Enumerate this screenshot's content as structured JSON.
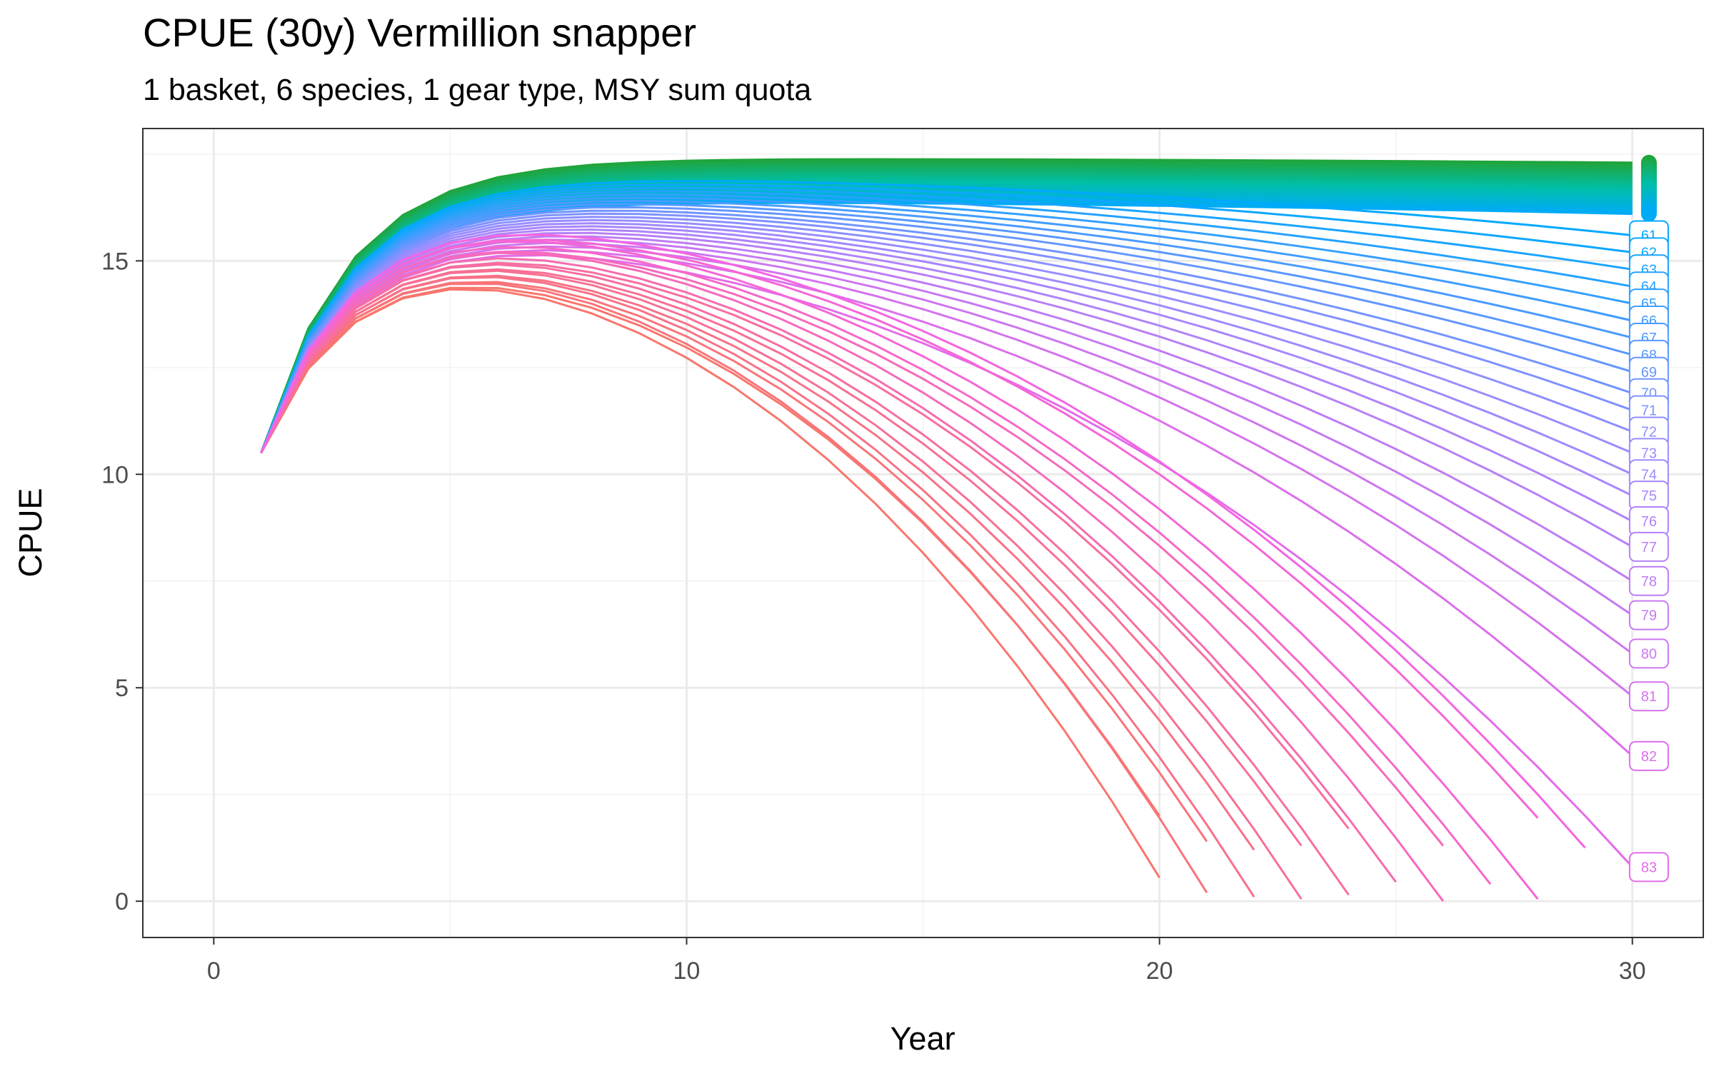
{
  "chart_data": {
    "type": "line",
    "title": "CPUE (30y) Vermillion snapper",
    "subtitle": "1 basket, 6 species, 1 gear type, MSY sum quota",
    "xlabel": "Year",
    "ylabel": "CPUE",
    "xlim": [
      -1.5,
      31.5
    ],
    "ylim": [
      -0.85,
      18.1
    ],
    "xticks": [
      0,
      10,
      20,
      30
    ],
    "yticks": [
      0,
      5,
      10,
      15
    ],
    "x_tick_labels": [
      "0",
      "10",
      "20",
      "30"
    ],
    "y_tick_labels": [
      "0",
      "5",
      "10",
      "15"
    ],
    "grid": true,
    "legend": "none",
    "series_description": "Family of CPUE trajectories, one per scenario; trajectories with lower quota (teal/green) stay near the plateau at ~17.3, higher quota (magenta/red) decline and end early. Scenarios labelled 61-83 at the right end.",
    "plateau": {
      "base": 10.5,
      "max": 17.4,
      "rise_rate": 0.55
    },
    "series": [
      {
        "name": "61",
        "end_value": 15.6
      },
      {
        "name": "62",
        "end_value": 15.2
      },
      {
        "name": "63",
        "end_value": 14.8
      },
      {
        "name": "64",
        "end_value": 14.4
      },
      {
        "name": "65",
        "end_value": 14.0
      },
      {
        "name": "66",
        "end_value": 13.6
      },
      {
        "name": "67",
        "end_value": 13.2
      },
      {
        "name": "68",
        "end_value": 12.8
      },
      {
        "name": "69",
        "end_value": 12.4
      },
      {
        "name": "70",
        "end_value": 11.9
      },
      {
        "name": "71",
        "end_value": 11.5
      },
      {
        "name": "72",
        "end_value": 11.0
      },
      {
        "name": "73",
        "end_value": 10.5
      },
      {
        "name": "74",
        "end_value": 10.0
      },
      {
        "name": "75",
        "end_value": 9.5
      },
      {
        "name": "76",
        "end_value": 8.9
      },
      {
        "name": "77",
        "end_value": 8.3
      },
      {
        "name": "78",
        "end_value": 7.5
      },
      {
        "name": "79",
        "end_value": 6.7
      },
      {
        "name": "80",
        "end_value": 5.8
      },
      {
        "name": "81",
        "end_value": 4.8
      },
      {
        "name": "82",
        "end_value": 3.4
      },
      {
        "name": "83",
        "end_value": 0.8
      }
    ],
    "early_ending_series": [
      {
        "end_year": 20,
        "end_value": 0.55
      },
      {
        "end_year": 20,
        "end_value": 2.0
      },
      {
        "end_year": 21,
        "end_value": 0.2
      },
      {
        "end_year": 21,
        "end_value": 1.4
      },
      {
        "end_year": 22,
        "end_value": 0.1
      },
      {
        "end_year": 22,
        "end_value": 1.2
      },
      {
        "end_year": 23,
        "end_value": 0.05
      },
      {
        "end_year": 23,
        "end_value": 1.3
      },
      {
        "end_year": 24,
        "end_value": 0.15
      },
      {
        "end_year": 24,
        "end_value": 1.7
      },
      {
        "end_year": 25,
        "end_value": 0.45
      },
      {
        "end_year": 26,
        "end_value": 0.0
      },
      {
        "end_year": 26,
        "end_value": 1.3
      },
      {
        "end_year": 27,
        "end_value": 0.4
      },
      {
        "end_year": 28,
        "end_value": 0.05
      },
      {
        "end_year": 28,
        "end_value": 1.95
      },
      {
        "end_year": 29,
        "end_value": 1.25
      }
    ],
    "colors": {
      "teal": "#00bfa8",
      "green": "#21a43a",
      "blue": "#00a9ff",
      "purple": "#9b8cff",
      "magenta": "#f564e3",
      "red": "#f8766d",
      "orange": "#e08b2a"
    }
  }
}
